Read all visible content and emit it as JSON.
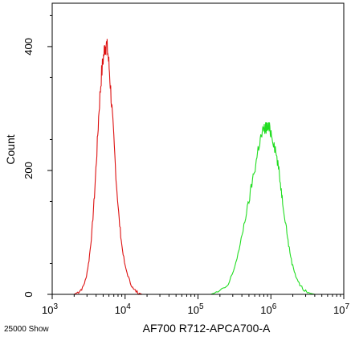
{
  "chart_data": {
    "type": "line",
    "title": "",
    "xlabel": "AF700 R712-APCA700-A",
    "ylabel": "Count",
    "x_scale": "log",
    "xlim": [
      1000,
      10000000
    ],
    "ylim": [
      0,
      470
    ],
    "grid": false,
    "x_ticks": [
      {
        "value": 1000,
        "base": "10",
        "exp": "3"
      },
      {
        "value": 10000,
        "base": "10",
        "exp": "4"
      },
      {
        "value": 100000,
        "base": "10",
        "exp": "5"
      },
      {
        "value": 1000000,
        "base": "10",
        "exp": "6"
      },
      {
        "value": 10000000,
        "base": "10",
        "exp": "7"
      }
    ],
    "y_ticks": [
      0,
      200,
      400
    ],
    "series": [
      {
        "color": "#dd1111",
        "points": [
          [
            2000,
            0
          ],
          [
            2300,
            4
          ],
          [
            2600,
            10
          ],
          [
            2900,
            25
          ],
          [
            3200,
            55
          ],
          [
            3500,
            100
          ],
          [
            3800,
            160
          ],
          [
            4100,
            230
          ],
          [
            4400,
            300
          ],
          [
            4700,
            350
          ],
          [
            5000,
            380
          ],
          [
            5300,
            400
          ],
          [
            5500,
            405
          ],
          [
            5800,
            390
          ],
          [
            6100,
            360
          ],
          [
            6500,
            310
          ],
          [
            7000,
            250
          ],
          [
            7600,
            180
          ],
          [
            8300,
            120
          ],
          [
            9000,
            80
          ],
          [
            10000,
            45
          ],
          [
            11500,
            22
          ],
          [
            13000,
            8
          ],
          [
            15000,
            3
          ],
          [
            17000,
            0
          ]
        ]
      },
      {
        "color": "#22dd22",
        "points": [
          [
            150000,
            0
          ],
          [
            200000,
            5
          ],
          [
            260000,
            15
          ],
          [
            320000,
            45
          ],
          [
            380000,
            80
          ],
          [
            440000,
            120
          ],
          [
            500000,
            150
          ],
          [
            560000,
            185
          ],
          [
            620000,
            210
          ],
          [
            680000,
            240
          ],
          [
            740000,
            255
          ],
          [
            800000,
            265
          ],
          [
            860000,
            270
          ],
          [
            920000,
            268
          ],
          [
            980000,
            265
          ],
          [
            1050000,
            255
          ],
          [
            1150000,
            235
          ],
          [
            1250000,
            210
          ],
          [
            1350000,
            180
          ],
          [
            1450000,
            150
          ],
          [
            1600000,
            115
          ],
          [
            1750000,
            80
          ],
          [
            1950000,
            50
          ],
          [
            2200000,
            30
          ],
          [
            2500000,
            15
          ],
          [
            2900000,
            6
          ],
          [
            3400000,
            2
          ],
          [
            4000000,
            0
          ]
        ]
      }
    ]
  },
  "footer": {
    "event_note": "25000 Show"
  }
}
